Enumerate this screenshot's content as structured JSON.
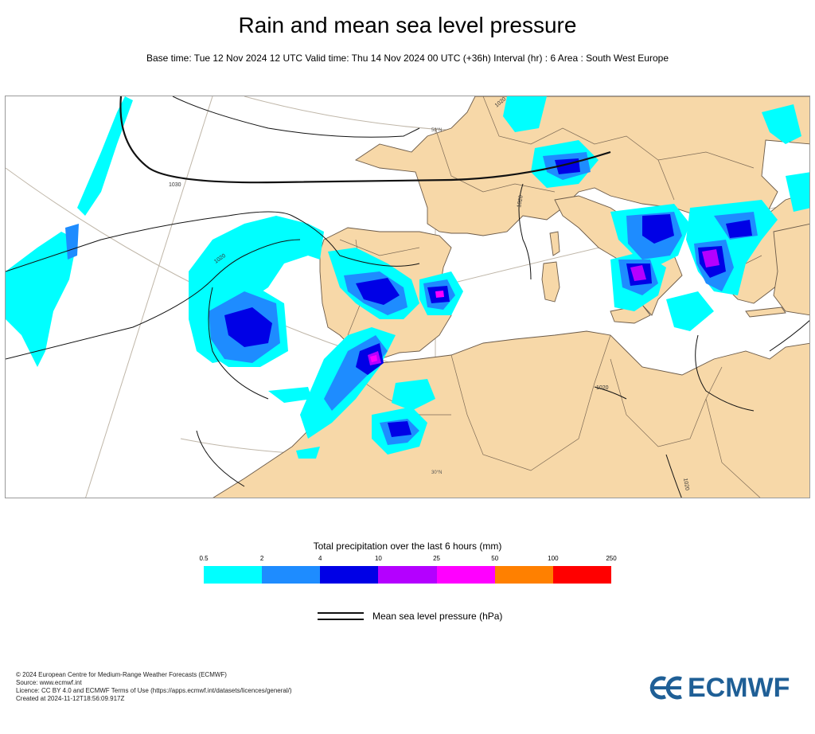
{
  "header": {
    "title": "Rain and mean sea level pressure",
    "subtitle": "Base time: Tue 12 Nov 2024 12 UTC Valid time: Thu 14 Nov 2024 00 UTC (+36h) Interval (hr) : 6 Area : South West Europe"
  },
  "map": {
    "isobar_labels": [
      "1030",
      "1020",
      "1020",
      "1020",
      "1020",
      "1020"
    ],
    "lat_labels": [
      "50°N",
      "30°N"
    ],
    "colors": {
      "land": "#f7d8a8",
      "sea": "#ffffff",
      "isobar": "#111111",
      "border": "#5a4a3a"
    }
  },
  "legend": {
    "title": "Total precipitation over the last 6 hours (mm)",
    "ticks": [
      "0.5",
      "2",
      "4",
      "10",
      "25",
      "50",
      "100",
      "250"
    ],
    "colors": [
      "#00ffff",
      "#1e8cff",
      "#0000e6",
      "#b400ff",
      "#ff00ff",
      "#ff8000",
      "#ff0000"
    ],
    "line_label": "Mean sea level pressure (hPa)"
  },
  "footer": {
    "lines": [
      "© 2024 European Centre for Medium-Range Weather Forecasts (ECMWF)",
      "Source: www.ecmwf.int",
      "Licence: CC BY 4.0 and ECMWF Terms of Use (https://apps.ecmwf.int/datasets/licences/general/)",
      "Created at 2024-11-12T18:56:09.917Z"
    ],
    "logo_text": "ECMWF"
  }
}
